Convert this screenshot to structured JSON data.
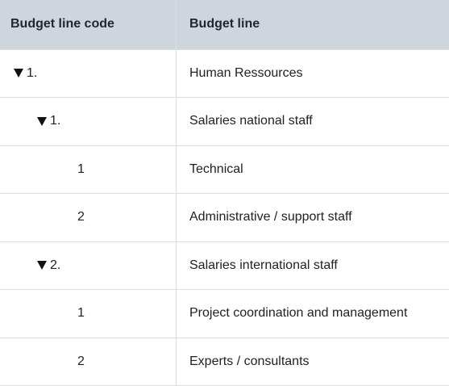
{
  "table": {
    "headers": {
      "code": "Budget line code",
      "line": "Budget line"
    },
    "rows": [
      {
        "code": "1.",
        "line": "Human Ressources",
        "level": 0,
        "expandable": true
      },
      {
        "code": "1.",
        "line": "Salaries national staff",
        "level": 1,
        "expandable": true
      },
      {
        "code": "1",
        "line": "Technical",
        "level": 2,
        "expandable": false
      },
      {
        "code": "2",
        "line": "Administrative / support staff",
        "level": 2,
        "expandable": false
      },
      {
        "code": "2.",
        "line": "Salaries international staff",
        "level": 1,
        "expandable": true
      },
      {
        "code": "1",
        "line": "Project coordination and management",
        "level": 2,
        "expandable": false
      },
      {
        "code": "2",
        "line": "Experts / consultants",
        "level": 2,
        "expandable": false
      }
    ]
  },
  "icons": {
    "expand": "caret-down-icon"
  },
  "colors": {
    "header_bg": "#cfd5dd",
    "border": "#dcdcdc"
  }
}
